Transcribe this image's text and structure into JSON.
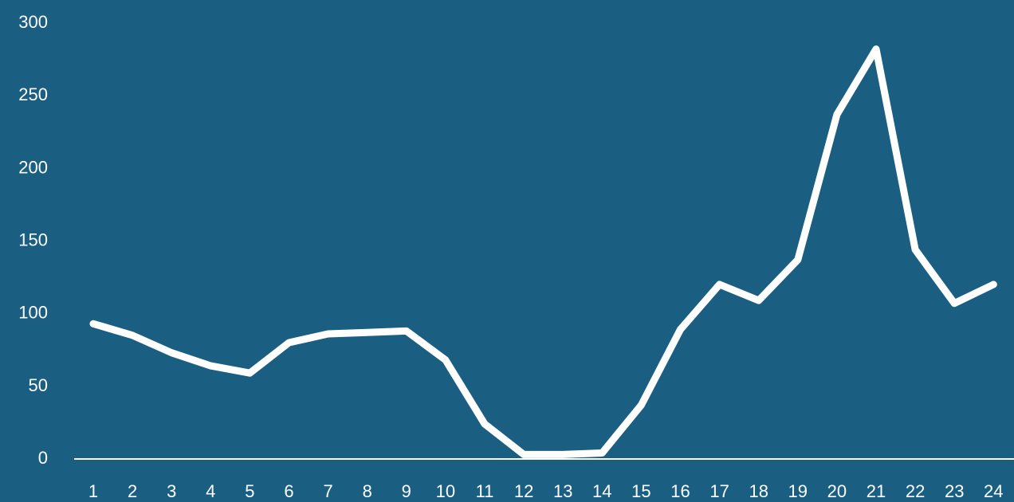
{
  "chart_data": {
    "type": "line",
    "categories": [
      "1",
      "2",
      "3",
      "4",
      "5",
      "6",
      "7",
      "8",
      "9",
      "10",
      "11",
      "12",
      "13",
      "14",
      "15",
      "16",
      "17",
      "18",
      "19",
      "20",
      "21",
      "22",
      "23",
      "24"
    ],
    "values": [
      92,
      84,
      72,
      63,
      58,
      79,
      85,
      86,
      87,
      67,
      23,
      2,
      2,
      3,
      36,
      88,
      119,
      108,
      136,
      236,
      281,
      143,
      106,
      119
    ],
    "title": "",
    "xlabel": "",
    "ylabel": "",
    "ylim": [
      0,
      300
    ],
    "yticks": [
      "0",
      "50",
      "100",
      "150",
      "200",
      "250",
      "300"
    ],
    "grid": false,
    "drop_lines": true,
    "colors": {
      "background": "#1a5e82",
      "line": "#ffffff",
      "axis": "#ffffff",
      "text": "#ffffff"
    }
  }
}
